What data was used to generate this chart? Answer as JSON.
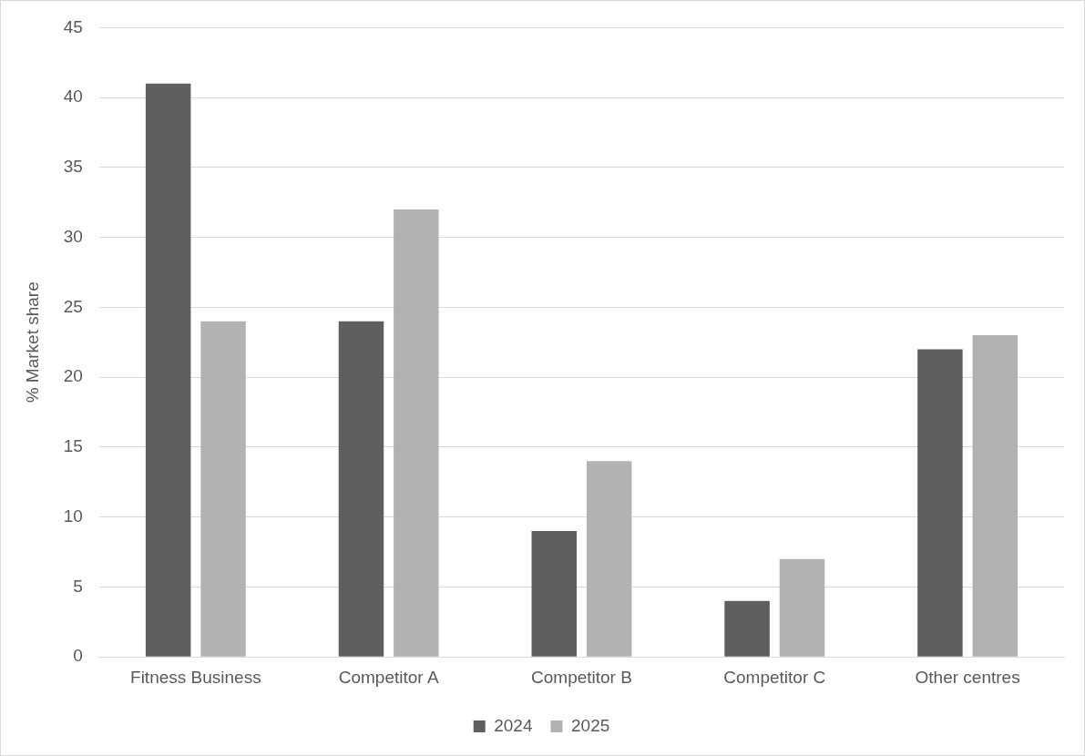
{
  "chart_data": {
    "type": "bar",
    "ylabel": "% Market share",
    "categories": [
      "Fitness Business",
      "Competitor A",
      "Competitor B",
      "Competitor C",
      "Other centres"
    ],
    "series": [
      {
        "name": "2024",
        "color": "#5f5f5f",
        "values": [
          41,
          24,
          9,
          4,
          22
        ]
      },
      {
        "name": "2025",
        "color": "#b2b2b2",
        "values": [
          24,
          32,
          14,
          7,
          23
        ]
      }
    ],
    "ylim": [
      0,
      45
    ],
    "yticks": [
      0,
      5,
      10,
      15,
      20,
      25,
      30,
      35,
      40,
      45
    ],
    "grid": "y",
    "legend": "bottom"
  }
}
